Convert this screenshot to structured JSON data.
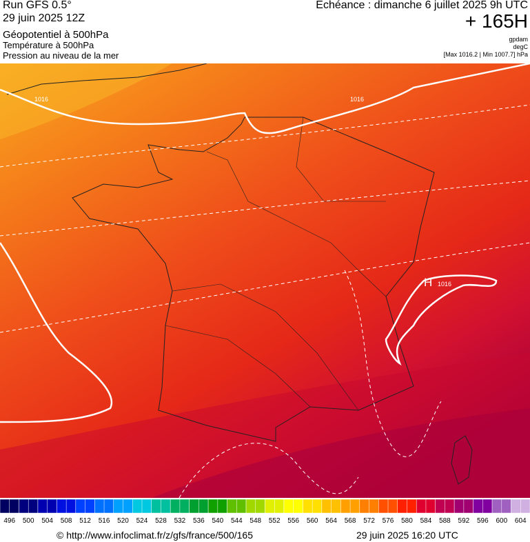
{
  "header": {
    "run": "Run GFS 0.5°",
    "run_date": "29 juin 2025 12Z",
    "title": "Géopotentiel à 500hPa",
    "subtitle_1": "Température à 500hPa",
    "subtitle_2": "Pression au niveau de la mer",
    "valid_time": "Echéance : dimanche 6 juillet 2025 9h UTC",
    "lead_time": "+ 165H",
    "units": [
      "gpdam",
      "degC",
      "[Max 1016.2 | Min 1007.7] hPa"
    ]
  },
  "map": {
    "isobar_labels": [
      "1016",
      "1016",
      "1016"
    ],
    "high_label": "H"
  },
  "colorbar": {
    "ticks": [
      496,
      500,
      504,
      508,
      512,
      516,
      520,
      524,
      528,
      532,
      536,
      540,
      544,
      548,
      552,
      556,
      560,
      564,
      568,
      572,
      576,
      580,
      584,
      588,
      592,
      596,
      600,
      604
    ],
    "colors": [
      "#000060",
      "#00007f",
      "#0000b0",
      "#0010e0",
      "#0040ff",
      "#0070ff",
      "#00a0ff",
      "#00c8e0",
      "#00c0a0",
      "#00b060",
      "#00a030",
      "#10a000",
      "#60c000",
      "#a0d800",
      "#e0f000",
      "#ffff00",
      "#ffe000",
      "#ffc000",
      "#ffa000",
      "#ff8000",
      "#ff5000",
      "#ff2000",
      "#e00030",
      "#c00050",
      "#a00070",
      "#8000a0",
      "#a060c0",
      "#d0b0e0"
    ]
  },
  "footer": {
    "source": "© http://www.infoclimat.fr/z/gfs/france/500/165",
    "generated": "29 juin 2025 16:20 UTC"
  }
}
